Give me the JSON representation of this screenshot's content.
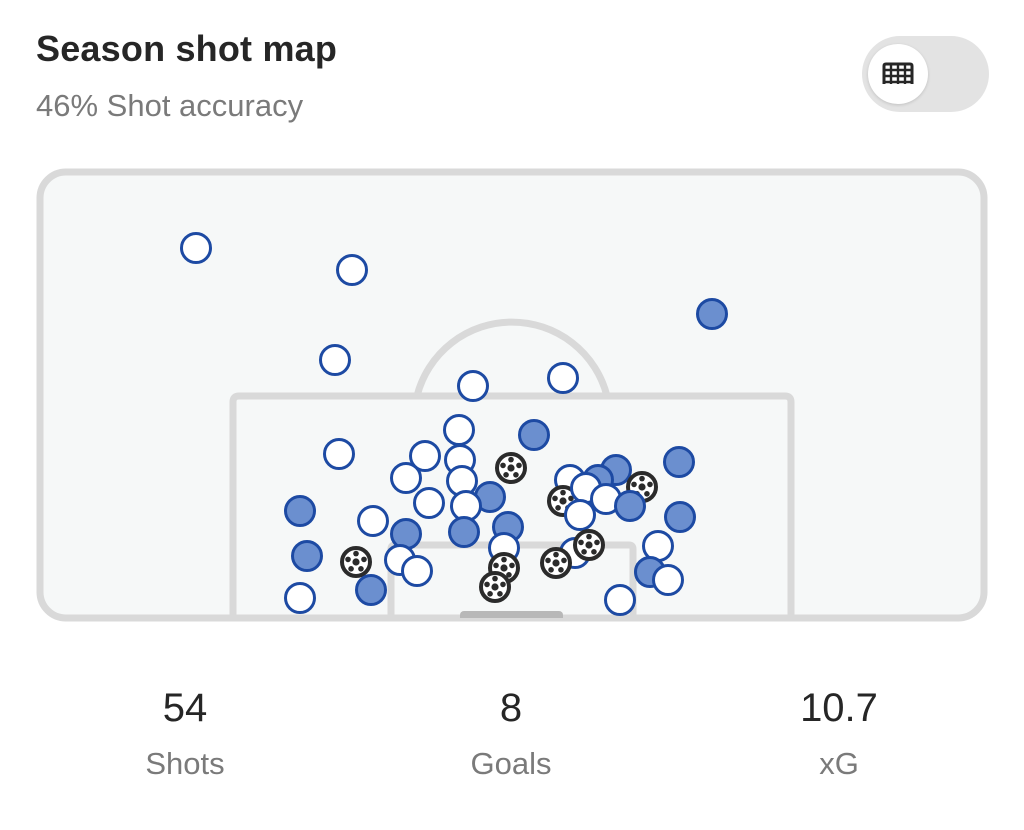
{
  "header": {
    "title": "Season shot map",
    "subtitle": "46% Shot accuracy"
  },
  "toggle": {
    "icon": "goal-net-icon",
    "state": "off"
  },
  "colors": {
    "shot_blue": "#1d4aa3",
    "on_target_fill": "#6b8fcf",
    "off_target_fill": "#ffffff",
    "goal_ball": "#2b2b2b",
    "pitch_bg": "#f6f8f8",
    "pitch_lines": "#d9d9d9"
  },
  "stats": [
    {
      "value": "54",
      "label": "Shots"
    },
    {
      "value": "8",
      "label": "Goals"
    },
    {
      "value": "10.7",
      "label": "xG"
    }
  ]
}
